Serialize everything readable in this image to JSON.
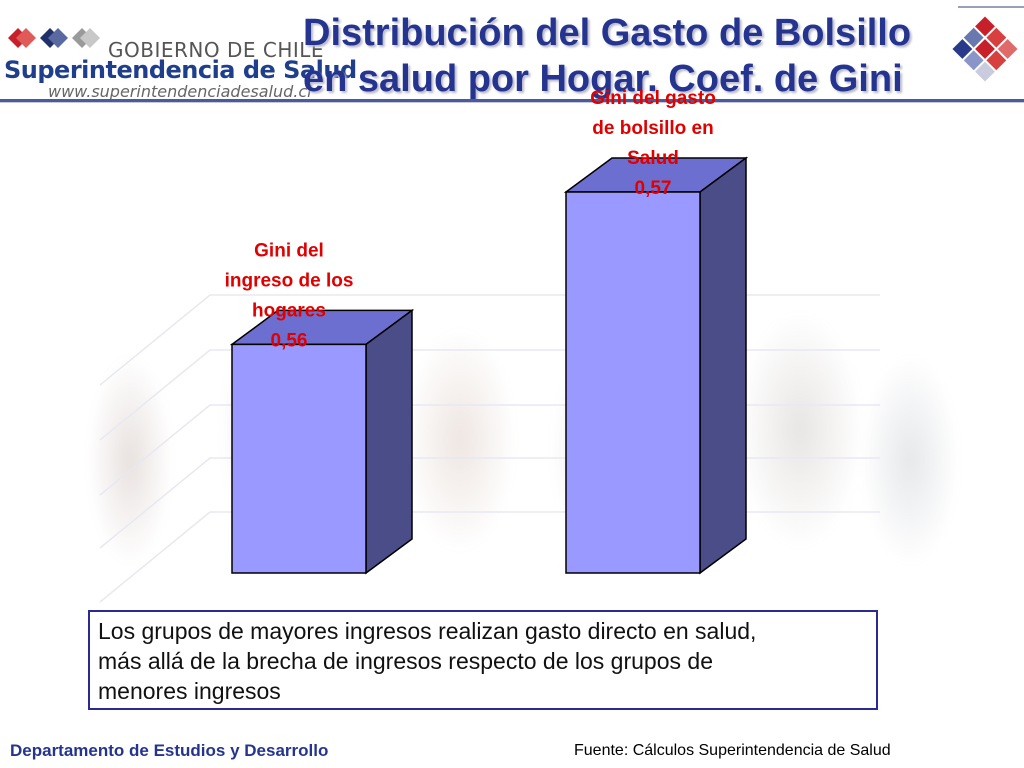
{
  "header": {
    "logo_line1": "GOBIERNO DE CHILE",
    "logo_line2": "Superintendencia de Salud",
    "logo_line3": "www.superintendenciadesalud.cl",
    "title_line1": "Distribución del Gasto de Bolsillo",
    "title_line2": "en salud por Hogar. Coef. de Gini"
  },
  "colors": {
    "bar_front": "#9999ff",
    "bar_top": "#6d6fd0",
    "bar_side": "#4b4d88",
    "label": "#e00000",
    "title": "#24348f"
  },
  "chart_data": {
    "type": "bar",
    "categories": [
      "Gini del ingreso de los hogares",
      "Gini del gasto de bolsillo en Salud"
    ],
    "values": [
      0.56,
      0.57
    ],
    "data_labels": [
      [
        "Gini del",
        "ingreso de los",
        "hogares",
        "0,56"
      ],
      [
        "Gini del gasto",
        "de bolsillo en",
        "Salud",
        "0,57"
      ]
    ],
    "style": "3d",
    "grid": true,
    "ylim": [
      0.545,
      0.57
    ]
  },
  "note": {
    "line1": "Los grupos de mayores ingresos realizan gasto directo en salud,",
    "line2": "más allá de la brecha de ingresos respecto de los grupos de",
    "line3": "menores ingresos"
  },
  "footer": {
    "department": "Departamento de Estudios y Desarrollo",
    "source": "Fuente: Cálculos Superintendencia de Salud"
  }
}
